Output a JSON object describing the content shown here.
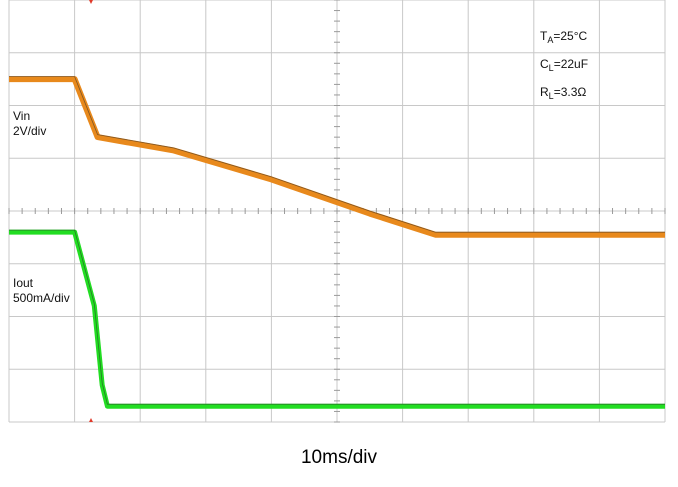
{
  "chart_data": {
    "type": "line",
    "title": "",
    "xlabel": "10ms/div",
    "ylabel": "",
    "grid": true,
    "x_divisions": 10,
    "y_divisions": 8,
    "xlim": [
      0,
      10
    ],
    "annotations": {
      "ta": "T_A=25°C",
      "cl": "C_L=22uF",
      "rl": "R_L=3.3Ω"
    },
    "series": [
      {
        "name": "Vin",
        "scale": "2V/div",
        "color": "#e8891c",
        "x": [
          0,
          1.0,
          1.35,
          2.5,
          4.0,
          5.5,
          6.5,
          10
        ],
        "y": [
          6.5,
          6.5,
          5.4,
          5.15,
          4.6,
          3.95,
          3.55,
          3.55
        ]
      },
      {
        "name": "Iout",
        "scale": "500mA/div",
        "color": "#22dd22",
        "x": [
          0,
          1.0,
          1.3,
          1.42,
          1.5,
          10
        ],
        "y": [
          3.6,
          3.6,
          2.2,
          0.7,
          0.3,
          0.3
        ]
      }
    ]
  }
}
